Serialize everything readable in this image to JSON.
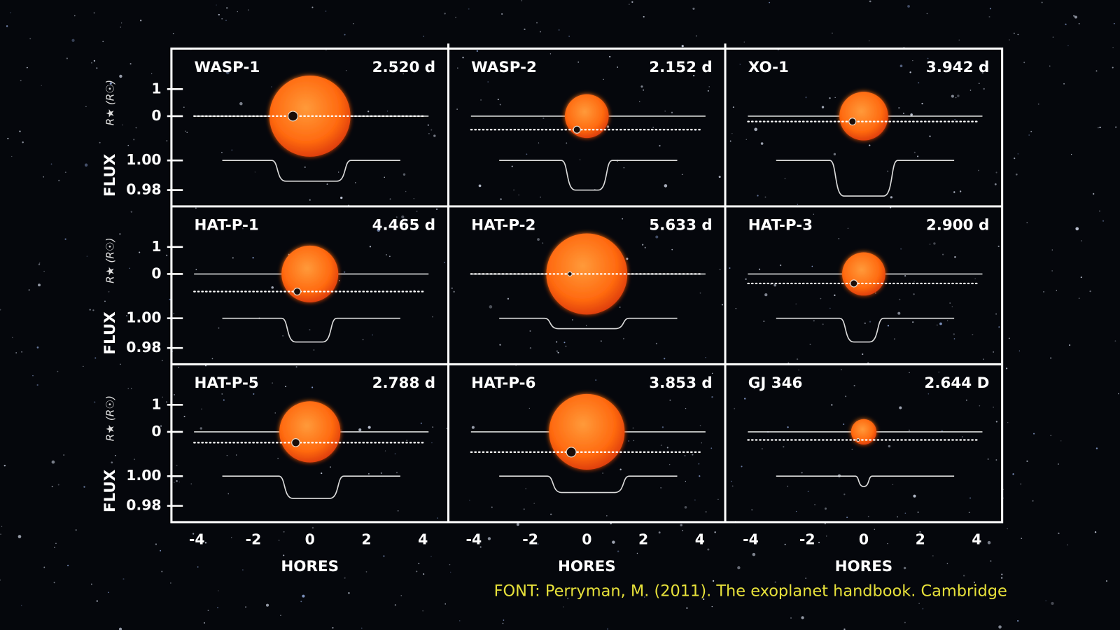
{
  "chart_data": {
    "type": "transit-grid",
    "xlim": [
      -4.9,
      4.9
    ],
    "xticks": [
      -4,
      -2,
      0,
      2,
      4
    ],
    "xlabel": "HORES",
    "rlim": [
      -1.2,
      2.5
    ],
    "rticks": [
      0,
      1
    ],
    "rlabel": "R★ (R☉)",
    "flux_lim": [
      0.969,
      1.008
    ],
    "flux_ticks": [
      {
        "value": 1,
        "label": "1.00"
      },
      0.98
    ],
    "flux_label": "FLUX",
    "star_color": "#ff6a10",
    "line_color": "#ffffff",
    "panels": [
      {
        "name": "WASP-1",
        "period": "2.520 d",
        "star_radius": 1.5,
        "impact": 0,
        "planet_x": -0.6,
        "planet_radius": 0.18,
        "transit": [
          -1.35,
          1.45
        ],
        "depth_flux": 0.986
      },
      {
        "name": "WASP-2",
        "period": "2.152 d",
        "star_radius": 0.81,
        "impact": -0.5,
        "planet_x": -0.35,
        "planet_radius": 0.13,
        "transit": [
          -0.9,
          0.9
        ],
        "depth_flux": 0.98
      },
      {
        "name": "XO-1",
        "period": "3.942 d",
        "star_radius": 0.9,
        "impact": -0.2,
        "planet_x": -0.4,
        "planet_radius": 0.13,
        "transit": [
          -1.2,
          1.2
        ],
        "depth_flux": 0.976
      },
      {
        "name": "HAT-P-1",
        "period": "4.465 d",
        "star_radius": 1.05,
        "impact": -0.65,
        "planet_x": -0.45,
        "planet_radius": 0.13,
        "transit": [
          -1.0,
          0.95
        ],
        "depth_flux": 0.984
      },
      {
        "name": "HAT-P-2",
        "period": "5.633 d",
        "star_radius": 1.5,
        "impact": 0,
        "planet_x": -0.6,
        "planet_radius": 0.08,
        "transit": [
          -1.5,
          1.5
        ],
        "depth_flux": 0.993
      },
      {
        "name": "HAT-P-3",
        "period": "2.900 d",
        "star_radius": 0.8,
        "impact": -0.35,
        "planet_x": -0.35,
        "planet_radius": 0.13,
        "transit": [
          -0.85,
          0.7
        ],
        "depth_flux": 0.984
      },
      {
        "name": "HAT-P-5",
        "period": "2.788 d",
        "star_radius": 1.13,
        "impact": -0.4,
        "planet_x": -0.5,
        "planet_radius": 0.15,
        "transit": [
          -1.1,
          1.2
        ],
        "depth_flux": 0.985
      },
      {
        "name": "HAT-P-6",
        "period": "3.853 d",
        "star_radius": 1.4,
        "impact": -0.75,
        "planet_x": -0.55,
        "planet_radius": 0.18,
        "transit": [
          -1.4,
          1.5
        ],
        "depth_flux": 0.989
      },
      {
        "name": "GJ 346",
        "period": "2.644 D",
        "star_radius": 0.47,
        "impact": -0.3,
        "planet_x": -0.2,
        "planet_radius": 0.05,
        "transit": [
          -0.3,
          0.3
        ],
        "depth_flux": 0.993
      }
    ],
    "source": "FONT: Perryman, M. (2011). The exoplanet handbook. Cambridge"
  }
}
